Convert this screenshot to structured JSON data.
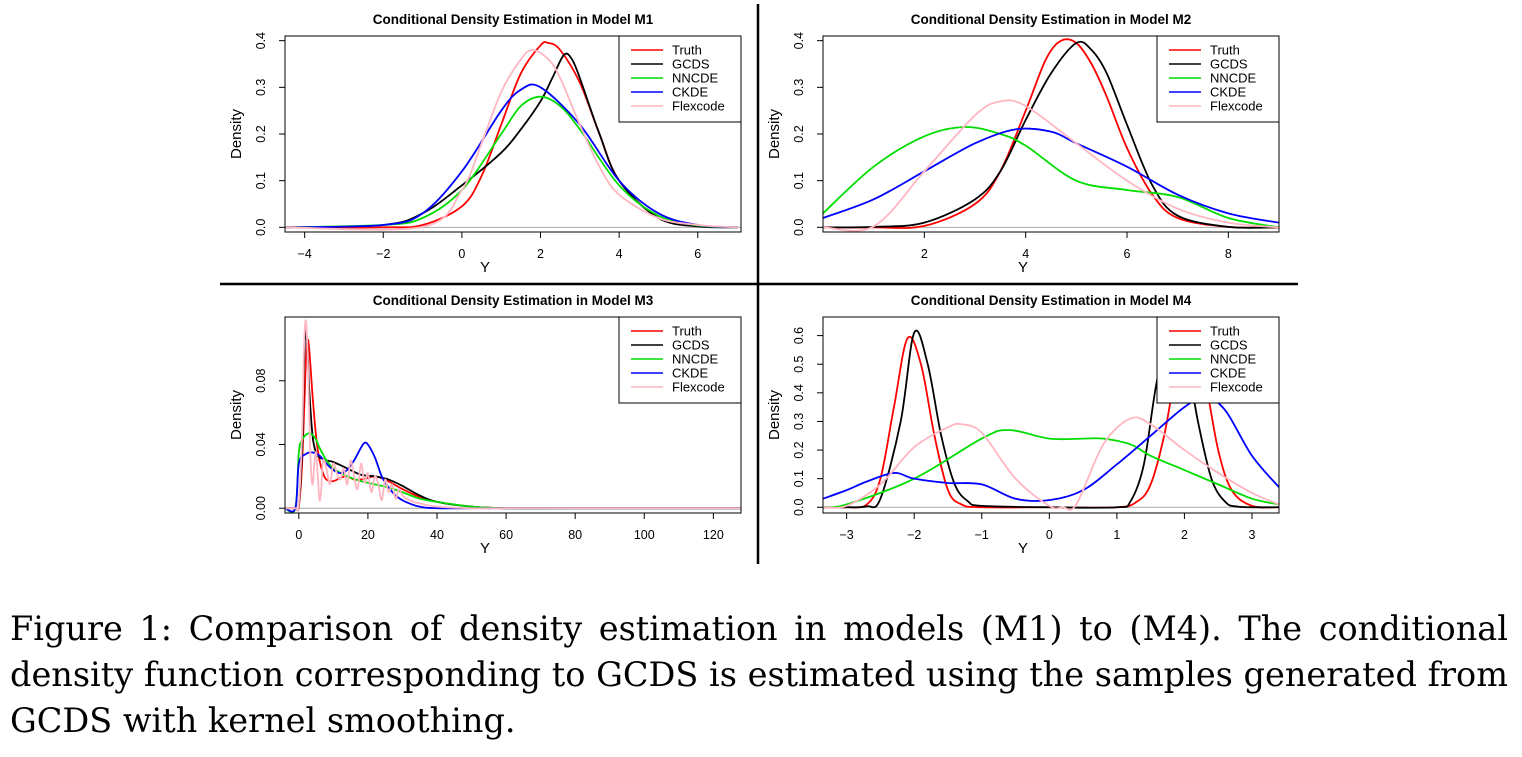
{
  "chart_data": [
    {
      "type": "line",
      "title": "Conditional Density Estimation in Model M1",
      "xlabel": "Y",
      "ylabel": "Density",
      "xlim": [
        -4.5,
        7.1
      ],
      "ylim": [
        -0.01,
        0.41
      ],
      "xticks": [
        -4,
        -2,
        0,
        2,
        4,
        6
      ],
      "yticks": [
        0.0,
        0.1,
        0.2,
        0.3,
        0.4
      ],
      "legend_position": "top-right",
      "series": [
        {
          "name": "Truth",
          "color": "#ff0000",
          "x": [
            -4.5,
            -2,
            -1,
            0,
            0.5,
            1,
            1.5,
            2,
            2.2,
            2.5,
            3,
            3.5,
            4,
            5,
            6,
            7
          ],
          "y": [
            0,
            0,
            0.005,
            0.045,
            0.11,
            0.22,
            0.33,
            0.39,
            0.395,
            0.38,
            0.31,
            0.2,
            0.1,
            0.02,
            0.003,
            0
          ]
        },
        {
          "name": "GCDS",
          "color": "#000000",
          "x": [
            -4.5,
            -2,
            -1,
            0,
            1,
            1.5,
            2,
            2.3,
            2.6,
            2.8,
            3,
            3.5,
            4,
            5,
            6,
            7
          ],
          "y": [
            0,
            0.005,
            0.03,
            0.09,
            0.16,
            0.21,
            0.27,
            0.32,
            0.37,
            0.36,
            0.32,
            0.2,
            0.1,
            0.02,
            0.002,
            0
          ]
        },
        {
          "name": "NNCDE",
          "color": "#00dd00",
          "x": [
            -4.5,
            -2,
            -1,
            0,
            1,
            1.5,
            2,
            2.5,
            3,
            4,
            5,
            6,
            7
          ],
          "y": [
            0,
            0.005,
            0.02,
            0.08,
            0.2,
            0.26,
            0.28,
            0.26,
            0.21,
            0.09,
            0.025,
            0.004,
            0
          ]
        },
        {
          "name": "CKDE",
          "color": "#0000ff",
          "x": [
            -4.5,
            -2,
            -1,
            0,
            1,
            1.5,
            2,
            3,
            4,
            5,
            6,
            7
          ],
          "y": [
            0,
            0.005,
            0.03,
            0.12,
            0.25,
            0.295,
            0.3,
            0.22,
            0.1,
            0.03,
            0.005,
            0
          ]
        },
        {
          "name": "Flexcode",
          "color": "#ffb6c1",
          "x": [
            -4.5,
            -1,
            0,
            0.5,
            1,
            1.5,
            1.8,
            2.2,
            2.5,
            3,
            3.5,
            4,
            5,
            6,
            7
          ],
          "y": [
            0,
            0.001,
            0.08,
            0.18,
            0.29,
            0.36,
            0.38,
            0.36,
            0.32,
            0.22,
            0.13,
            0.07,
            0.02,
            0.005,
            0
          ]
        }
      ]
    },
    {
      "type": "line",
      "title": "Conditional Density Estimation in Model M2",
      "xlabel": "Y",
      "ylabel": "Density",
      "xlim": [
        0,
        9
      ],
      "ylim": [
        -0.01,
        0.41
      ],
      "xticks": [
        2,
        4,
        6,
        8
      ],
      "yticks": [
        0.0,
        0.1,
        0.2,
        0.3,
        0.4
      ],
      "legend_position": "top-right",
      "series": [
        {
          "name": "Truth",
          "color": "#ff0000",
          "x": [
            0,
            1,
            2,
            3,
            3.5,
            4,
            4.4,
            4.7,
            5,
            5.3,
            5.6,
            6,
            6.5,
            7,
            8,
            9
          ],
          "y": [
            0,
            0,
            0.003,
            0.05,
            0.12,
            0.25,
            0.36,
            0.4,
            0.395,
            0.35,
            0.28,
            0.17,
            0.07,
            0.02,
            0.001,
            0
          ]
        },
        {
          "name": "GCDS",
          "color": "#000000",
          "x": [
            0,
            1,
            2,
            3,
            3.5,
            4,
            4.5,
            5,
            5.3,
            5.6,
            6,
            6.5,
            7,
            8,
            9
          ],
          "y": [
            0,
            0.001,
            0.01,
            0.06,
            0.12,
            0.23,
            0.33,
            0.395,
            0.38,
            0.33,
            0.22,
            0.09,
            0.025,
            0.001,
            0
          ]
        },
        {
          "name": "NNCDE",
          "color": "#00dd00",
          "x": [
            0,
            1,
            2,
            2.8,
            3.5,
            4,
            5,
            6,
            7,
            8,
            9
          ],
          "y": [
            0.03,
            0.13,
            0.195,
            0.215,
            0.2,
            0.175,
            0.1,
            0.08,
            0.065,
            0.02,
            0
          ]
        },
        {
          "name": "CKDE",
          "color": "#0000ff",
          "x": [
            0,
            1,
            2,
            3,
            3.8,
            4.5,
            5,
            6,
            7,
            8,
            9
          ],
          "y": [
            0.02,
            0.06,
            0.12,
            0.18,
            0.21,
            0.205,
            0.18,
            0.13,
            0.07,
            0.03,
            0.01
          ]
        },
        {
          "name": "Flexcode",
          "color": "#ffb6c1",
          "x": [
            0,
            1,
            2,
            3,
            3.5,
            4,
            5,
            6,
            7,
            8,
            9
          ],
          "y": [
            0,
            0.002,
            0.12,
            0.24,
            0.27,
            0.26,
            0.18,
            0.1,
            0.04,
            0.01,
            0
          ]
        }
      ]
    },
    {
      "type": "line",
      "title": "Conditional Density Estimation in Model M3",
      "xlabel": "Y",
      "ylabel": "Density",
      "xlim": [
        -4,
        128
      ],
      "ylim": [
        -0.003,
        0.12
      ],
      "xticks": [
        0,
        20,
        40,
        60,
        80,
        100,
        120
      ],
      "yticks": [
        0.0,
        0.04,
        0.08
      ],
      "legend_position": "top-right",
      "series": [
        {
          "name": "Truth",
          "color": "#ff0000",
          "x": [
            -4,
            -1,
            0,
            1,
            2,
            2.5,
            3,
            4,
            5,
            6,
            7,
            8,
            10,
            12,
            14,
            16,
            18,
            20,
            22,
            25,
            30,
            35,
            40,
            50,
            60,
            80,
            128
          ],
          "y": [
            0,
            0,
            0.001,
            0.03,
            0.09,
            0.105,
            0.1,
            0.07,
            0.045,
            0.03,
            0.022,
            0.018,
            0.017,
            0.019,
            0.02,
            0.018,
            0.018,
            0.019,
            0.02,
            0.018,
            0.012,
            0.007,
            0.004,
            0.001,
            0,
            0,
            0
          ]
        },
        {
          "name": "GCDS",
          "color": "#000000",
          "x": [
            -4,
            -1,
            0,
            1,
            1.5,
            2,
            2.5,
            3,
            4,
            5,
            6,
            8,
            10,
            14,
            18,
            22,
            26,
            30,
            35,
            40,
            50,
            60,
            80,
            128
          ],
          "y": [
            0,
            0,
            0.002,
            0.04,
            0.09,
            0.112,
            0.1,
            0.075,
            0.045,
            0.035,
            0.032,
            0.03,
            0.029,
            0.025,
            0.021,
            0.02,
            0.018,
            0.014,
            0.008,
            0.004,
            0.001,
            0,
            0,
            0
          ]
        },
        {
          "name": "NNCDE",
          "color": "#00dd00",
          "x": [
            -4,
            -1,
            0,
            1,
            2,
            3,
            4,
            5,
            6,
            8,
            10,
            14,
            18,
            22,
            26,
            30,
            35,
            40,
            50,
            60,
            80,
            128
          ],
          "y": [
            0,
            0,
            0.035,
            0.043,
            0.046,
            0.047,
            0.046,
            0.043,
            0.038,
            0.03,
            0.025,
            0.02,
            0.017,
            0.015,
            0.013,
            0.01,
            0.006,
            0.004,
            0.001,
            0,
            0,
            0
          ]
        },
        {
          "name": "CKDE",
          "color": "#0000ff",
          "x": [
            -4,
            -1,
            0,
            2,
            4,
            6,
            8,
            10,
            12,
            14,
            16,
            18,
            19,
            20,
            22,
            24,
            26,
            28,
            30,
            32,
            35,
            40,
            60,
            90,
            128
          ],
          "y": [
            0,
            0,
            0.028,
            0.034,
            0.035,
            0.033,
            0.028,
            0.024,
            0.022,
            0.024,
            0.03,
            0.038,
            0.041,
            0.04,
            0.032,
            0.02,
            0.013,
            0.008,
            0.005,
            0.003,
            0.001,
            0,
            0,
            0,
            0
          ]
        },
        {
          "name": "Flexcode",
          "color": "#ffb6c1",
          "x": [
            -4,
            -1,
            0,
            1,
            1.5,
            2,
            2.5,
            3,
            3.5,
            4,
            4.5,
            5,
            5.5,
            6,
            6.5,
            7,
            8,
            9,
            10,
            11,
            12,
            13,
            14,
            15,
            16,
            17,
            18,
            19,
            20,
            21,
            22,
            23,
            24,
            25,
            26,
            27,
            28,
            29,
            30,
            32,
            35,
            40,
            50,
            60,
            128
          ],
          "y": [
            0,
            0,
            0.003,
            0.05,
            0.1,
            0.118,
            0.1,
            0.06,
            0.025,
            0.015,
            0.028,
            0.035,
            0.02,
            0.005,
            0.012,
            0.03,
            0.025,
            0.015,
            0.028,
            0.022,
            0.018,
            0.025,
            0.015,
            0.03,
            0.02,
            0.012,
            0.028,
            0.016,
            0.022,
            0.01,
            0.02,
            0.015,
            0.005,
            0.018,
            0.01,
            0.015,
            0.006,
            0.012,
            0.008,
            0.005,
            0.003,
            0.001,
            0,
            0,
            0
          ]
        }
      ]
    },
    {
      "type": "line",
      "title": "Conditional Density Estimation in Model M4",
      "xlabel": "Y",
      "ylabel": "Density",
      "xlim": [
        -3.35,
        3.4
      ],
      "ylim": [
        -0.02,
        0.665
      ],
      "xticks": [
        -3,
        -2,
        -1,
        0,
        1,
        2,
        3
      ],
      "yticks": [
        0.0,
        0.1,
        0.2,
        0.3,
        0.4,
        0.5,
        0.6
      ],
      "legend_position": "top-right",
      "series": [
        {
          "name": "Truth",
          "color": "#ff0000",
          "x": [
            -3.35,
            -3,
            -2.7,
            -2.5,
            -2.3,
            -2.1,
            -1.9,
            -1.7,
            -1.5,
            -1.3,
            -1,
            0,
            1,
            1.3,
            1.5,
            1.7,
            1.9,
            2.1,
            2.3,
            2.5,
            2.7,
            3,
            3.4
          ],
          "y": [
            0,
            0,
            0.01,
            0.1,
            0.35,
            0.59,
            0.5,
            0.25,
            0.06,
            0.01,
            0,
            0,
            0,
            0.02,
            0.08,
            0.25,
            0.5,
            0.6,
            0.45,
            0.2,
            0.06,
            0.005,
            0
          ]
        },
        {
          "name": "GCDS",
          "color": "#000000",
          "x": [
            -3.35,
            -3,
            -2.7,
            -2.5,
            -2.2,
            -2,
            -1.8,
            -1.6,
            -1.4,
            -1.2,
            -1,
            0,
            1,
            1.2,
            1.4,
            1.6,
            1.85,
            2.05,
            2.2,
            2.4,
            2.6,
            2.8,
            3.4
          ],
          "y": [
            0,
            0,
            0.003,
            0.03,
            0.3,
            0.61,
            0.5,
            0.25,
            0.08,
            0.02,
            0.005,
            0,
            0,
            0.02,
            0.15,
            0.45,
            0.66,
            0.5,
            0.3,
            0.1,
            0.02,
            0.002,
            0
          ]
        },
        {
          "name": "NNCDE",
          "color": "#00dd00",
          "x": [
            -3.35,
            -3,
            -2,
            -1,
            -0.6,
            0,
            0.5,
            0.8,
            1.2,
            1.5,
            2,
            2.5,
            3,
            3.4
          ],
          "y": [
            0,
            0.01,
            0.1,
            0.24,
            0.27,
            0.24,
            0.24,
            0.24,
            0.22,
            0.18,
            0.13,
            0.08,
            0.03,
            0.01
          ]
        },
        {
          "name": "CKDE",
          "color": "#0000ff",
          "x": [
            -3.35,
            -3,
            -2.7,
            -2.3,
            -2,
            -1.5,
            -1,
            -0.5,
            0,
            0.5,
            1,
            1.5,
            2,
            2.3,
            2.6,
            3,
            3.4
          ],
          "y": [
            0.03,
            0.06,
            0.09,
            0.12,
            0.1,
            0.085,
            0.08,
            0.03,
            0.025,
            0.06,
            0.15,
            0.25,
            0.35,
            0.385,
            0.34,
            0.18,
            0.07
          ]
        },
        {
          "name": "Flexcode",
          "color": "#ffb6c1",
          "x": [
            -3.35,
            -3,
            -2.5,
            -2,
            -1.5,
            -1.3,
            -1,
            -0.5,
            0,
            0.2,
            0.4,
            0.8,
            1.2,
            1.5,
            2,
            2.5,
            3,
            3.4
          ],
          "y": [
            0,
            0.005,
            0.08,
            0.21,
            0.28,
            0.29,
            0.26,
            0.1,
            0.005,
            0,
            0.01,
            0.22,
            0.31,
            0.29,
            0.2,
            0.12,
            0.05,
            0.01
          ]
        }
      ]
    }
  ],
  "caption": {
    "lines": [
      "Figure 1:  Comparison of density estimation in models (M1) to (M4).  The conditional",
      "density function corresponding to GCDS is estimated using the samples generated from",
      "GCDS with kernel smoothing."
    ]
  }
}
